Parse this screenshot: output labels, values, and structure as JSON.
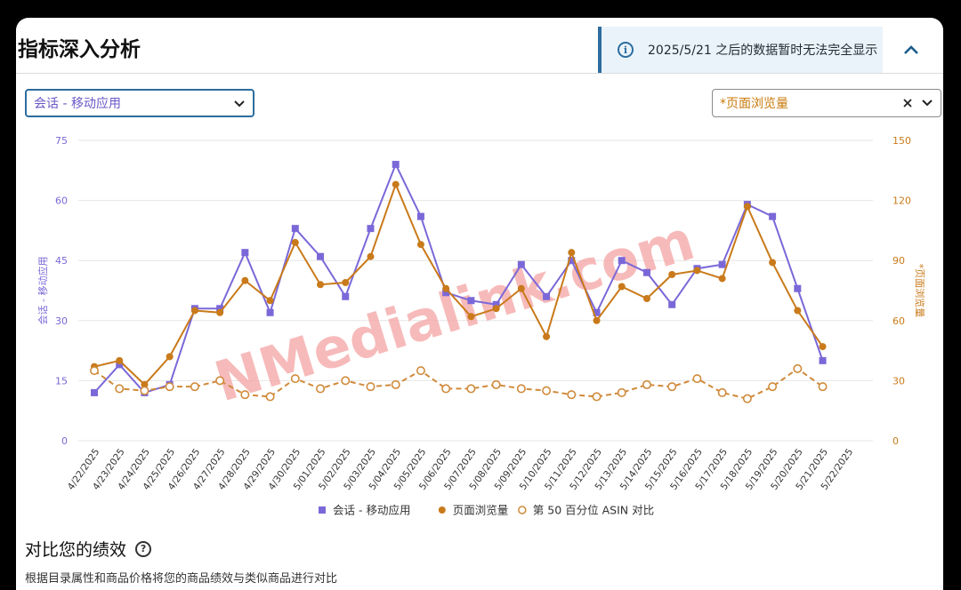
{
  "page": {
    "title": "指标深入分析",
    "banner_text": "2025/5/21 之后的数据暂时无法完全显示",
    "left_select": "会话 - 移动应用",
    "right_select": "*页面浏览量",
    "section_title": "对比您的绩效",
    "section_desc": "根据目录属性和商品价格将您的商品绩效与类似商品进行对比",
    "watermark": "NMedialink.com"
  },
  "colors": {
    "purple": "#7b68d8",
    "orange": "#c97a1a",
    "orange_light": "#d08a3a",
    "grid": "#e6e6e6",
    "watermark": "#f4a3a3"
  },
  "icons": {
    "info": "info-circle-icon",
    "collapse": "chevron-up-icon",
    "dropdown": "chevron-down-icon",
    "clear": "close-icon",
    "help": "question-circle-icon"
  },
  "chart_data": {
    "type": "line",
    "categories": [
      "4/22/2025",
      "4/23/2025",
      "4/24/2025",
      "4/25/2025",
      "4/26/2025",
      "4/27/2025",
      "4/28/2025",
      "4/29/2025",
      "4/30/2025",
      "5/01/2025",
      "5/02/2025",
      "5/03/2025",
      "5/04/2025",
      "5/05/2025",
      "5/06/2025",
      "5/07/2025",
      "5/08/2025",
      "5/09/2025",
      "5/10/2025",
      "5/11/2025",
      "5/12/2025",
      "5/13/2025",
      "5/14/2025",
      "5/15/2025",
      "5/16/2025",
      "5/17/2025",
      "5/18/2025",
      "5/19/2025",
      "5/20/2025",
      "5/21/2025",
      "5/22/2025"
    ],
    "left_axis": {
      "label": "会话 - 移动应用",
      "ticks": [
        "0",
        "15",
        "30",
        "45",
        "60",
        "75"
      ],
      "ylim": [
        0,
        75
      ]
    },
    "right_axis": {
      "label": "*页面浏览量",
      "ticks": [
        "0",
        "30",
        "60",
        "90",
        "120",
        "150"
      ],
      "ylim": [
        0,
        150
      ]
    },
    "series": [
      {
        "name": "会话 - 移动应用",
        "axis": "left",
        "marker": "square",
        "color": "#7b68d8",
        "values": [
          12,
          19,
          12,
          14,
          33,
          33,
          47,
          32,
          53,
          46,
          36,
          53,
          69,
          56,
          37,
          35,
          34,
          44,
          36,
          45,
          32,
          45,
          42,
          34,
          43,
          44,
          59,
          56,
          38,
          20,
          null
        ]
      },
      {
        "name": "页面浏览量",
        "axis": "right",
        "marker": "circle",
        "color": "#c97a1a",
        "values": [
          37,
          40,
          28,
          42,
          65,
          64,
          80,
          70,
          99,
          78,
          79,
          92,
          128,
          98,
          76,
          62,
          66,
          76,
          52,
          94,
          60,
          77,
          71,
          83,
          85,
          81,
          117,
          89,
          65,
          47,
          null
        ]
      },
      {
        "name": "第 50 百分位 ASIN 对比",
        "axis": "right",
        "marker": "open-circle",
        "dashed": true,
        "color": "#d08a3a",
        "values": [
          35,
          26,
          25,
          27,
          27,
          30,
          23,
          22,
          31,
          26,
          30,
          27,
          28,
          35,
          26,
          26,
          28,
          26,
          25,
          23,
          22,
          24,
          28,
          27,
          31,
          24,
          21,
          27,
          36,
          27,
          null
        ]
      }
    ],
    "legend_position": "bottom",
    "grid": true
  }
}
